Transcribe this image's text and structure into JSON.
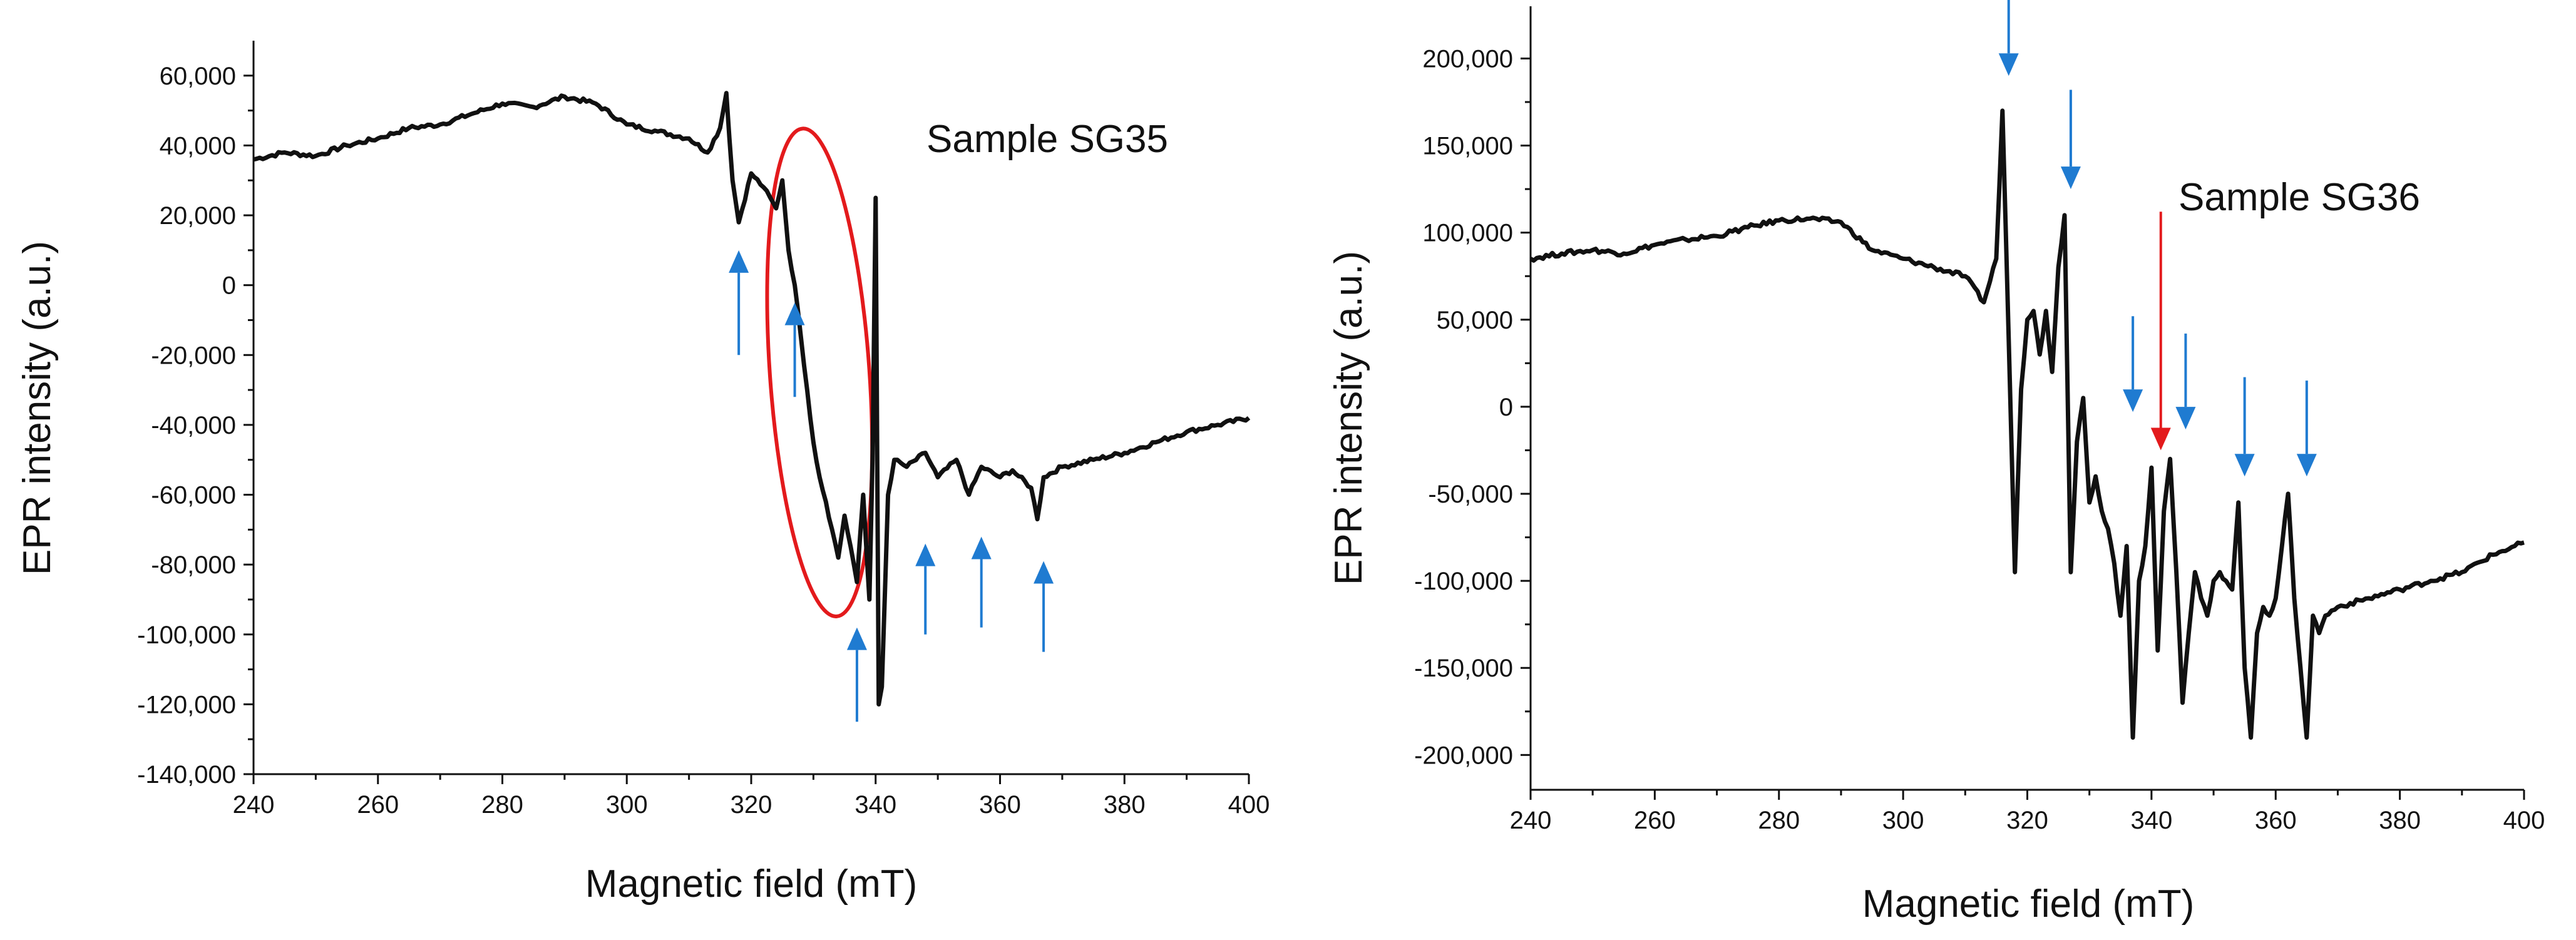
{
  "chart_data": [
    {
      "type": "line",
      "panel": "left",
      "annotation": "Sample SG35",
      "xlabel": "Magnetic field (mT)",
      "ylabel": "EPR intensity (a.u.)",
      "xlim": [
        240,
        400
      ],
      "ylim": [
        -140000,
        70000
      ],
      "x_ticks": [
        240,
        260,
        280,
        300,
        320,
        340,
        360,
        380,
        400
      ],
      "x_tick_labels": [
        "240",
        "260",
        "280",
        "300",
        "320",
        "340",
        "360",
        "380",
        "400"
      ],
      "y_ticks": [
        60000,
        40000,
        20000,
        0,
        -20000,
        -40000,
        -60000,
        -80000,
        -100000,
        -120000,
        -140000
      ],
      "y_tick_labels": [
        "60,000",
        "40,000",
        "20,000",
        "0",
        "-20,000",
        "-40,000",
        "-60,000",
        "-80,000",
        "-100,000",
        "-120,000",
        "-140,000"
      ],
      "series": [
        {
          "name": "SG35",
          "color": "#111111",
          "x": [
            240,
            245,
            250,
            255,
            260,
            265,
            270,
            275,
            280,
            285,
            290,
            295,
            300,
            305,
            310,
            313,
            315,
            316,
            317,
            318,
            320,
            322,
            324,
            325,
            326,
            327,
            328,
            329,
            330,
            331,
            332,
            333,
            334,
            335,
            336,
            337,
            338,
            339,
            339.5,
            340,
            340.5,
            341,
            342,
            343,
            345,
            348,
            350,
            353,
            355,
            357,
            360,
            362,
            365,
            366,
            367,
            370,
            375,
            380,
            385,
            390,
            395,
            400
          ],
          "y": [
            36000,
            38000,
            37000,
            40000,
            42000,
            45000,
            46000,
            49000,
            52000,
            51000,
            54000,
            52000,
            46000,
            44000,
            42000,
            38000,
            45000,
            55000,
            30000,
            18000,
            32000,
            28000,
            22000,
            30000,
            10000,
            0,
            -15000,
            -30000,
            -45000,
            -55000,
            -62000,
            -70000,
            -78000,
            -66000,
            -75000,
            -85000,
            -60000,
            -90000,
            -50000,
            25000,
            -120000,
            -115000,
            -60000,
            -50000,
            -52000,
            -48000,
            -55000,
            -50000,
            -60000,
            -52000,
            -55000,
            -53000,
            -58000,
            -67000,
            -55000,
            -52000,
            -50000,
            -48000,
            -45000,
            -42000,
            -40000,
            -38000
          ]
        }
      ],
      "ellipse": {
        "color": "#e31a1c",
        "center_x": 331,
        "center_y": -25000,
        "rx_data": 8,
        "ry_data": 70000
      },
      "arrows": [
        {
          "direction": "up",
          "x": 318,
          "y_tail": -20000,
          "y_head": 10000,
          "color": "#1f7bd1"
        },
        {
          "direction": "up",
          "x": 327,
          "y_tail": -32000,
          "y_head": -5000,
          "color": "#1f7bd1"
        },
        {
          "direction": "up",
          "x": 337,
          "y_tail": -125000,
          "y_head": -98000,
          "color": "#1f7bd1"
        },
        {
          "direction": "up",
          "x": 348,
          "y_tail": -100000,
          "y_head": -74000,
          "color": "#1f7bd1"
        },
        {
          "direction": "up",
          "x": 357,
          "y_tail": -98000,
          "y_head": -72000,
          "color": "#1f7bd1"
        },
        {
          "direction": "up",
          "x": 367,
          "y_tail": -105000,
          "y_head": -79000,
          "color": "#1f7bd1"
        }
      ]
    },
    {
      "type": "line",
      "panel": "right",
      "annotation": "Sample SG36",
      "xlabel": "Magnetic field (mT)",
      "ylabel": "EPR intensity (a.u.)",
      "xlim": [
        240,
        400
      ],
      "ylim": [
        -220000,
        230000
      ],
      "x_ticks": [
        240,
        260,
        280,
        300,
        320,
        340,
        360,
        380,
        400
      ],
      "x_tick_labels": [
        "240",
        "260",
        "280",
        "300",
        "320",
        "340",
        "360",
        "380",
        "400"
      ],
      "y_ticks": [
        200000,
        150000,
        100000,
        50000,
        0,
        -50000,
        -100000,
        -150000,
        -200000
      ],
      "y_tick_labels": [
        "200,000",
        "150,000",
        "100,000",
        "50,000",
        "0",
        "-50,000",
        "-100,000",
        "-150,000",
        "-200,000"
      ],
      "series": [
        {
          "name": "SG36",
          "color": "#111111",
          "x": [
            240,
            245,
            250,
            255,
            260,
            265,
            270,
            275,
            280,
            285,
            290,
            295,
            300,
            305,
            310,
            313,
            315,
            316,
            317,
            318,
            319,
            320,
            321,
            322,
            323,
            324,
            325,
            326,
            327,
            328,
            329,
            330,
            331,
            332,
            333,
            334,
            335,
            336,
            337,
            338,
            339,
            340,
            341,
            342,
            343,
            344,
            345,
            346,
            347,
            348,
            349,
            350,
            351,
            352,
            353,
            354,
            355,
            356,
            357,
            358,
            359,
            360,
            362,
            363,
            364,
            365,
            366,
            367,
            368,
            370,
            375,
            380,
            385,
            390,
            395,
            400
          ],
          "y": [
            85000,
            88000,
            90000,
            88000,
            93000,
            96000,
            98000,
            103000,
            107000,
            108000,
            106000,
            90000,
            85000,
            80000,
            75000,
            60000,
            85000,
            170000,
            40000,
            -95000,
            10000,
            50000,
            55000,
            30000,
            55000,
            20000,
            80000,
            110000,
            -95000,
            -20000,
            5000,
            -55000,
            -40000,
            -60000,
            -70000,
            -90000,
            -120000,
            -80000,
            -190000,
            -100000,
            -80000,
            -35000,
            -140000,
            -60000,
            -30000,
            -95000,
            -170000,
            -130000,
            -95000,
            -110000,
            -120000,
            -100000,
            -95000,
            -100000,
            -105000,
            -55000,
            -150000,
            -190000,
            -130000,
            -115000,
            -120000,
            -110000,
            -50000,
            -110000,
            -150000,
            -190000,
            -120000,
            -130000,
            -120000,
            -115000,
            -110000,
            -105000,
            -100000,
            -95000,
            -85000,
            -78000
          ]
        }
      ],
      "arrows": [
        {
          "direction": "down",
          "x": 317,
          "y_tail": 245000,
          "y_head": 190000,
          "color": "#1f7bd1"
        },
        {
          "direction": "down",
          "x": 327,
          "y_tail": 182000,
          "y_head": 125000,
          "color": "#1f7bd1"
        },
        {
          "direction": "down",
          "x": 337,
          "y_tail": 52000,
          "y_head": -3000,
          "color": "#1f7bd1"
        },
        {
          "direction": "down",
          "x": 341.5,
          "y_tail": 112000,
          "y_head": -25000,
          "color": "#e31a1c"
        },
        {
          "direction": "down",
          "x": 345.5,
          "y_tail": 42000,
          "y_head": -13000,
          "color": "#1f7bd1"
        },
        {
          "direction": "down",
          "x": 355,
          "y_tail": 17000,
          "y_head": -40000,
          "color": "#1f7bd1"
        },
        {
          "direction": "down",
          "x": 365,
          "y_tail": 15000,
          "y_head": -40000,
          "color": "#1f7bd1"
        }
      ]
    }
  ]
}
